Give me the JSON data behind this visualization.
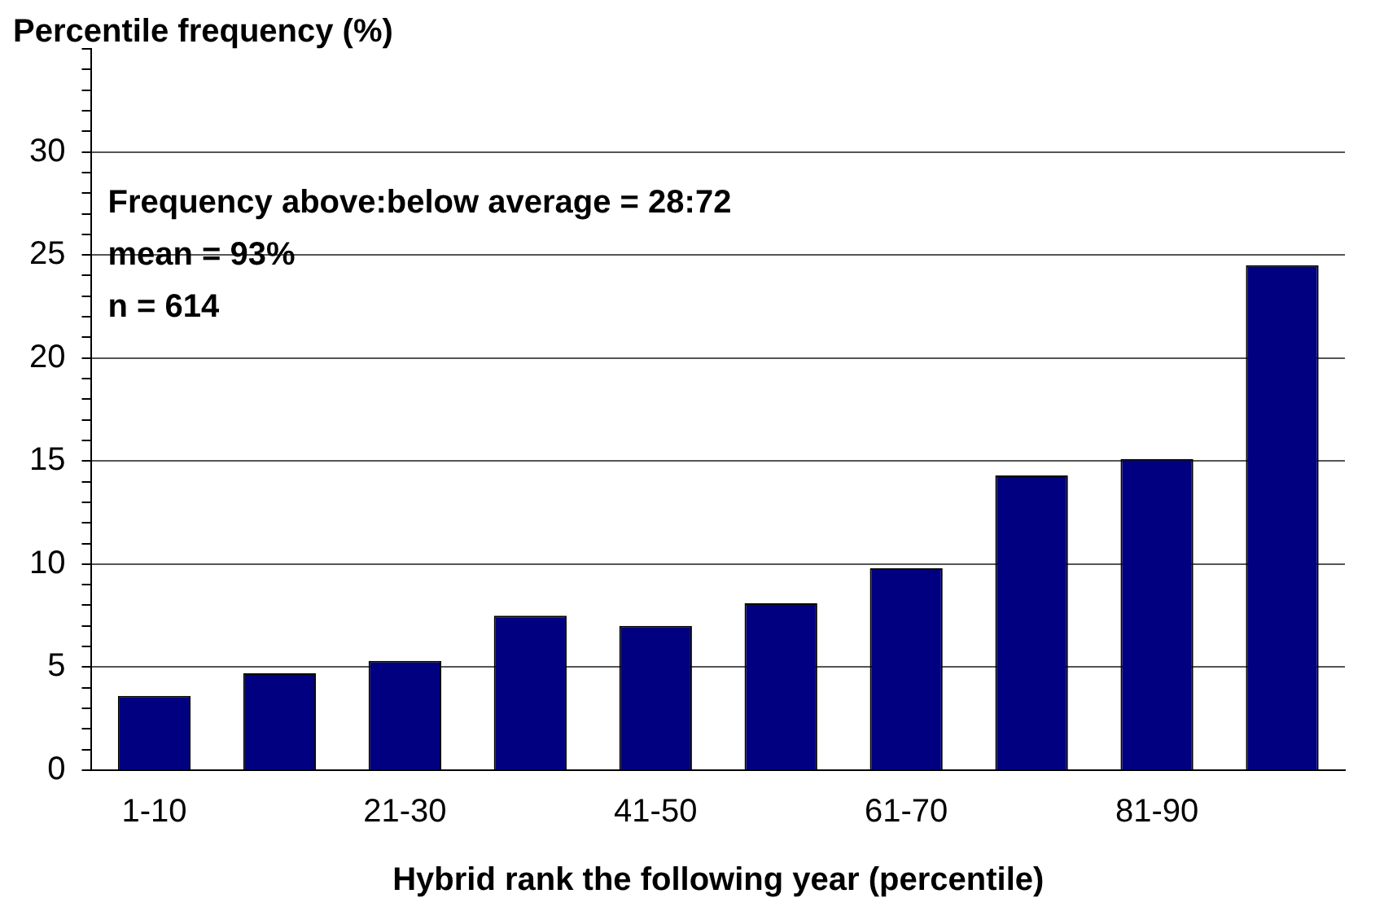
{
  "chart_data": {
    "type": "bar",
    "xlabel": "Hybrid rank the following year (percentile)",
    "ylabel": "Percentile frequency (%)",
    "categories": [
      "1-10",
      null,
      "21-30",
      null,
      "41-50",
      null,
      "61-70",
      null,
      "81-90",
      null
    ],
    "values": [
      3.6,
      4.7,
      5.3,
      7.5,
      7.0,
      8.1,
      9.8,
      14.3,
      15.1,
      24.5
    ],
    "color": "#000080",
    "ylim": [
      0,
      35
    ],
    "yticks": [
      0,
      {
        "value": 1,
        "label": null
      },
      {
        "value": 2,
        "label": null
      },
      {
        "value": 3,
        "label": null
      },
      {
        "value": 4,
        "label": null
      },
      5,
      {
        "value": 6,
        "label": null
      },
      {
        "value": 7,
        "label": null
      },
      {
        "value": 8,
        "label": null
      },
      {
        "value": 9,
        "label": null
      },
      10,
      {
        "value": 11,
        "label": null
      },
      {
        "value": 12,
        "label": null
      },
      {
        "value": 13,
        "label": null
      },
      {
        "value": 14,
        "label": null
      },
      15,
      {
        "value": 16,
        "label": null
      },
      {
        "value": 17,
        "label": null
      },
      {
        "value": 18,
        "label": null
      },
      {
        "value": 19,
        "label": null
      },
      20,
      {
        "value": 21,
        "label": null
      },
      {
        "value": 22,
        "label": null
      },
      {
        "value": 23,
        "label": null
      },
      {
        "value": 24,
        "label": null
      },
      25,
      {
        "value": 26,
        "label": null
      },
      {
        "value": 27,
        "label": null
      },
      {
        "value": 28,
        "label": null
      },
      {
        "value": 29,
        "label": null
      },
      30,
      {
        "value": 31,
        "label": null
      },
      {
        "value": 32,
        "label": null
      },
      {
        "value": 33,
        "label": null
      },
      {
        "value": 34,
        "label": null
      },
      {
        "value": 35,
        "label": null
      }
    ],
    "grid": "y",
    "legend": false,
    "annotations": [
      "Frequency above:below average = 28:72",
      "mean = 93%",
      "n = 614"
    ]
  }
}
